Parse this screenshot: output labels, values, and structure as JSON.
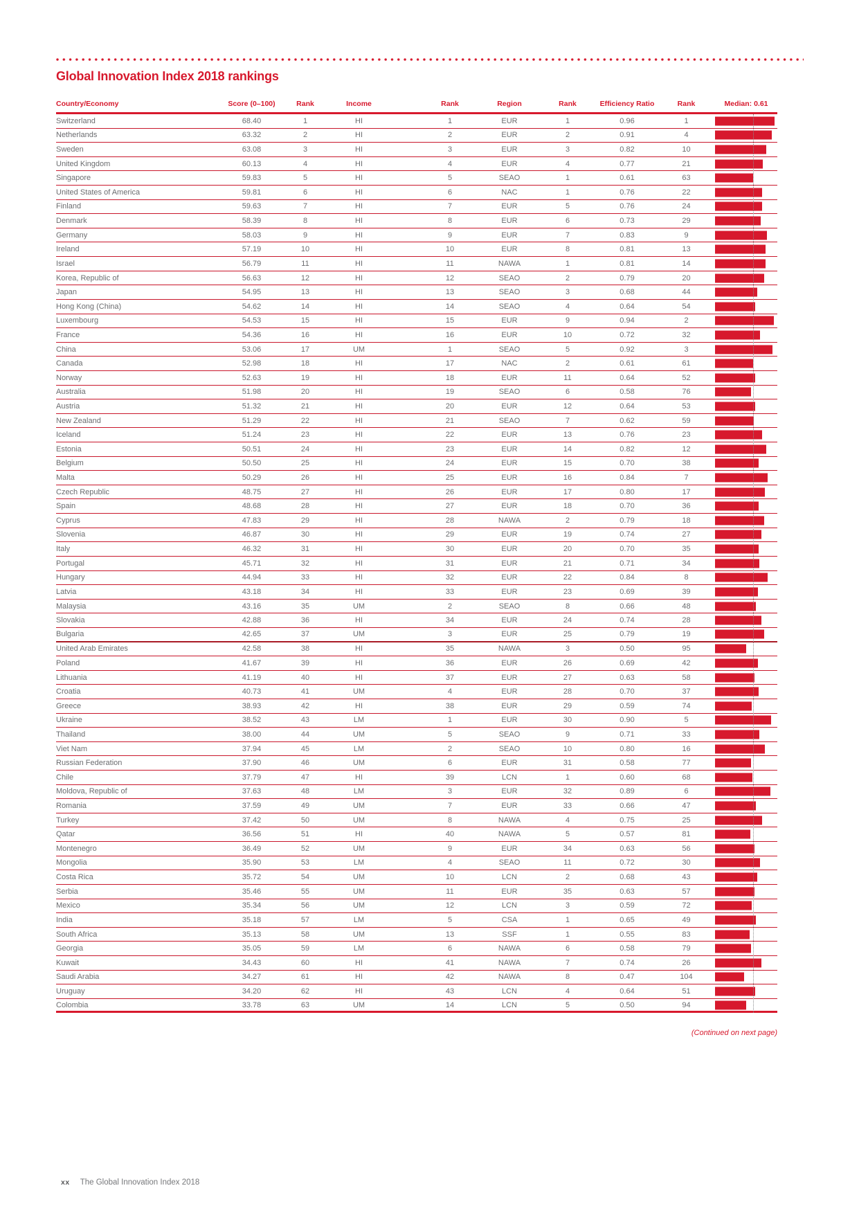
{
  "page": {
    "title": "Global Innovation Index 2018 rankings",
    "continued_note": "(Continued on next page)",
    "footer": {
      "page_number": "xx",
      "text": "The Global Innovation Index 2018"
    }
  },
  "colors": {
    "accent_red": "#D7192D",
    "row_line_red": "#C9162B",
    "body_text_gray": "#6B6C6F",
    "median_line_gray": "#8A8C8E"
  },
  "table": {
    "headers": {
      "country": "Country/Economy",
      "score": "Score (0–100)",
      "score_rank": "Rank",
      "income": "Income",
      "income_rank": "Rank",
      "region": "Region",
      "region_rank": "Rank",
      "efficiency": "Efficiency Ratio",
      "efficiency_rank": "Rank",
      "median": "Median: 0.61"
    },
    "median_value": 0.61,
    "half_divider_after_rank": 37,
    "rows": [
      {
        "country": "Switzerland",
        "score": "68.40",
        "score_rank": "1",
        "income": "HI",
        "income_rank": "1",
        "region": "EUR",
        "region_rank": "1",
        "efficiency_ratio": "0.96",
        "efficiency_rank": "1"
      },
      {
        "country": "Netherlands",
        "score": "63.32",
        "score_rank": "2",
        "income": "HI",
        "income_rank": "2",
        "region": "EUR",
        "region_rank": "2",
        "efficiency_ratio": "0.91",
        "efficiency_rank": "4"
      },
      {
        "country": "Sweden",
        "score": "63.08",
        "score_rank": "3",
        "income": "HI",
        "income_rank": "3",
        "region": "EUR",
        "region_rank": "3",
        "efficiency_ratio": "0.82",
        "efficiency_rank": "10"
      },
      {
        "country": "United Kingdom",
        "score": "60.13",
        "score_rank": "4",
        "income": "HI",
        "income_rank": "4",
        "region": "EUR",
        "region_rank": "4",
        "efficiency_ratio": "0.77",
        "efficiency_rank": "21"
      },
      {
        "country": "Singapore",
        "score": "59.83",
        "score_rank": "5",
        "income": "HI",
        "income_rank": "5",
        "region": "SEAO",
        "region_rank": "1",
        "efficiency_ratio": "0.61",
        "efficiency_rank": "63"
      },
      {
        "country": "United States of America",
        "score": "59.81",
        "score_rank": "6",
        "income": "HI",
        "income_rank": "6",
        "region": "NAC",
        "region_rank": "1",
        "efficiency_ratio": "0.76",
        "efficiency_rank": "22"
      },
      {
        "country": "Finland",
        "score": "59.63",
        "score_rank": "7",
        "income": "HI",
        "income_rank": "7",
        "region": "EUR",
        "region_rank": "5",
        "efficiency_ratio": "0.76",
        "efficiency_rank": "24"
      },
      {
        "country": "Denmark",
        "score": "58.39",
        "score_rank": "8",
        "income": "HI",
        "income_rank": "8",
        "region": "EUR",
        "region_rank": "6",
        "efficiency_ratio": "0.73",
        "efficiency_rank": "29"
      },
      {
        "country": "Germany",
        "score": "58.03",
        "score_rank": "9",
        "income": "HI",
        "income_rank": "9",
        "region": "EUR",
        "region_rank": "7",
        "efficiency_ratio": "0.83",
        "efficiency_rank": "9"
      },
      {
        "country": "Ireland",
        "score": "57.19",
        "score_rank": "10",
        "income": "HI",
        "income_rank": "10",
        "region": "EUR",
        "region_rank": "8",
        "efficiency_ratio": "0.81",
        "efficiency_rank": "13"
      },
      {
        "country": "Israel",
        "score": "56.79",
        "score_rank": "11",
        "income": "HI",
        "income_rank": "11",
        "region": "NAWA",
        "region_rank": "1",
        "efficiency_ratio": "0.81",
        "efficiency_rank": "14"
      },
      {
        "country": "Korea, Republic of",
        "score": "56.63",
        "score_rank": "12",
        "income": "HI",
        "income_rank": "12",
        "region": "SEAO",
        "region_rank": "2",
        "efficiency_ratio": "0.79",
        "efficiency_rank": "20"
      },
      {
        "country": "Japan",
        "score": "54.95",
        "score_rank": "13",
        "income": "HI",
        "income_rank": "13",
        "region": "SEAO",
        "region_rank": "3",
        "efficiency_ratio": "0.68",
        "efficiency_rank": "44"
      },
      {
        "country": "Hong Kong (China)",
        "score": "54.62",
        "score_rank": "14",
        "income": "HI",
        "income_rank": "14",
        "region": "SEAO",
        "region_rank": "4",
        "efficiency_ratio": "0.64",
        "efficiency_rank": "54"
      },
      {
        "country": "Luxembourg",
        "score": "54.53",
        "score_rank": "15",
        "income": "HI",
        "income_rank": "15",
        "region": "EUR",
        "region_rank": "9",
        "efficiency_ratio": "0.94",
        "efficiency_rank": "2"
      },
      {
        "country": "France",
        "score": "54.36",
        "score_rank": "16",
        "income": "HI",
        "income_rank": "16",
        "region": "EUR",
        "region_rank": "10",
        "efficiency_ratio": "0.72",
        "efficiency_rank": "32"
      },
      {
        "country": "China",
        "score": "53.06",
        "score_rank": "17",
        "income": "UM",
        "income_rank": "1",
        "region": "SEAO",
        "region_rank": "5",
        "efficiency_ratio": "0.92",
        "efficiency_rank": "3"
      },
      {
        "country": "Canada",
        "score": "52.98",
        "score_rank": "18",
        "income": "HI",
        "income_rank": "17",
        "region": "NAC",
        "region_rank": "2",
        "efficiency_ratio": "0.61",
        "efficiency_rank": "61"
      },
      {
        "country": "Norway",
        "score": "52.63",
        "score_rank": "19",
        "income": "HI",
        "income_rank": "18",
        "region": "EUR",
        "region_rank": "11",
        "efficiency_ratio": "0.64",
        "efficiency_rank": "52"
      },
      {
        "country": "Australia",
        "score": "51.98",
        "score_rank": "20",
        "income": "HI",
        "income_rank": "19",
        "region": "SEAO",
        "region_rank": "6",
        "efficiency_ratio": "0.58",
        "efficiency_rank": "76"
      },
      {
        "country": "Austria",
        "score": "51.32",
        "score_rank": "21",
        "income": "HI",
        "income_rank": "20",
        "region": "EUR",
        "region_rank": "12",
        "efficiency_ratio": "0.64",
        "efficiency_rank": "53"
      },
      {
        "country": "New Zealand",
        "score": "51.29",
        "score_rank": "22",
        "income": "HI",
        "income_rank": "21",
        "region": "SEAO",
        "region_rank": "7",
        "efficiency_ratio": "0.62",
        "efficiency_rank": "59"
      },
      {
        "country": "Iceland",
        "score": "51.24",
        "score_rank": "23",
        "income": "HI",
        "income_rank": "22",
        "region": "EUR",
        "region_rank": "13",
        "efficiency_ratio": "0.76",
        "efficiency_rank": "23"
      },
      {
        "country": "Estonia",
        "score": "50.51",
        "score_rank": "24",
        "income": "HI",
        "income_rank": "23",
        "region": "EUR",
        "region_rank": "14",
        "efficiency_ratio": "0.82",
        "efficiency_rank": "12"
      },
      {
        "country": "Belgium",
        "score": "50.50",
        "score_rank": "25",
        "income": "HI",
        "income_rank": "24",
        "region": "EUR",
        "region_rank": "15",
        "efficiency_ratio": "0.70",
        "efficiency_rank": "38"
      },
      {
        "country": "Malta",
        "score": "50.29",
        "score_rank": "26",
        "income": "HI",
        "income_rank": "25",
        "region": "EUR",
        "region_rank": "16",
        "efficiency_ratio": "0.84",
        "efficiency_rank": "7"
      },
      {
        "country": "Czech Republic",
        "score": "48.75",
        "score_rank": "27",
        "income": "HI",
        "income_rank": "26",
        "region": "EUR",
        "region_rank": "17",
        "efficiency_ratio": "0.80",
        "efficiency_rank": "17"
      },
      {
        "country": "Spain",
        "score": "48.68",
        "score_rank": "28",
        "income": "HI",
        "income_rank": "27",
        "region": "EUR",
        "region_rank": "18",
        "efficiency_ratio": "0.70",
        "efficiency_rank": "36"
      },
      {
        "country": "Cyprus",
        "score": "47.83",
        "score_rank": "29",
        "income": "HI",
        "income_rank": "28",
        "region": "NAWA",
        "region_rank": "2",
        "efficiency_ratio": "0.79",
        "efficiency_rank": "18"
      },
      {
        "country": "Slovenia",
        "score": "46.87",
        "score_rank": "30",
        "income": "HI",
        "income_rank": "29",
        "region": "EUR",
        "region_rank": "19",
        "efficiency_ratio": "0.74",
        "efficiency_rank": "27"
      },
      {
        "country": "Italy",
        "score": "46.32",
        "score_rank": "31",
        "income": "HI",
        "income_rank": "30",
        "region": "EUR",
        "region_rank": "20",
        "efficiency_ratio": "0.70",
        "efficiency_rank": "35"
      },
      {
        "country": "Portugal",
        "score": "45.71",
        "score_rank": "32",
        "income": "HI",
        "income_rank": "31",
        "region": "EUR",
        "region_rank": "21",
        "efficiency_ratio": "0.71",
        "efficiency_rank": "34"
      },
      {
        "country": "Hungary",
        "score": "44.94",
        "score_rank": "33",
        "income": "HI",
        "income_rank": "32",
        "region": "EUR",
        "region_rank": "22",
        "efficiency_ratio": "0.84",
        "efficiency_rank": "8"
      },
      {
        "country": "Latvia",
        "score": "43.18",
        "score_rank": "34",
        "income": "HI",
        "income_rank": "33",
        "region": "EUR",
        "region_rank": "23",
        "efficiency_ratio": "0.69",
        "efficiency_rank": "39"
      },
      {
        "country": "Malaysia",
        "score": "43.16",
        "score_rank": "35",
        "income": "UM",
        "income_rank": "2",
        "region": "SEAO",
        "region_rank": "8",
        "efficiency_ratio": "0.66",
        "efficiency_rank": "48"
      },
      {
        "country": "Slovakia",
        "score": "42.88",
        "score_rank": "36",
        "income": "HI",
        "income_rank": "34",
        "region": "EUR",
        "region_rank": "24",
        "efficiency_ratio": "0.74",
        "efficiency_rank": "28"
      },
      {
        "country": "Bulgaria",
        "score": "42.65",
        "score_rank": "37",
        "income": "UM",
        "income_rank": "3",
        "region": "EUR",
        "region_rank": "25",
        "efficiency_ratio": "0.79",
        "efficiency_rank": "19"
      },
      {
        "country": "United Arab Emirates",
        "score": "42.58",
        "score_rank": "38",
        "income": "HI",
        "income_rank": "35",
        "region": "NAWA",
        "region_rank": "3",
        "efficiency_ratio": "0.50",
        "efficiency_rank": "95"
      },
      {
        "country": "Poland",
        "score": "41.67",
        "score_rank": "39",
        "income": "HI",
        "income_rank": "36",
        "region": "EUR",
        "region_rank": "26",
        "efficiency_ratio": "0.69",
        "efficiency_rank": "42"
      },
      {
        "country": "Lithuania",
        "score": "41.19",
        "score_rank": "40",
        "income": "HI",
        "income_rank": "37",
        "region": "EUR",
        "region_rank": "27",
        "efficiency_ratio": "0.63",
        "efficiency_rank": "58"
      },
      {
        "country": "Croatia",
        "score": "40.73",
        "score_rank": "41",
        "income": "UM",
        "income_rank": "4",
        "region": "EUR",
        "region_rank": "28",
        "efficiency_ratio": "0.70",
        "efficiency_rank": "37"
      },
      {
        "country": "Greece",
        "score": "38.93",
        "score_rank": "42",
        "income": "HI",
        "income_rank": "38",
        "region": "EUR",
        "region_rank": "29",
        "efficiency_ratio": "0.59",
        "efficiency_rank": "74"
      },
      {
        "country": "Ukraine",
        "score": "38.52",
        "score_rank": "43",
        "income": "LM",
        "income_rank": "1",
        "region": "EUR",
        "region_rank": "30",
        "efficiency_ratio": "0.90",
        "efficiency_rank": "5"
      },
      {
        "country": "Thailand",
        "score": "38.00",
        "score_rank": "44",
        "income": "UM",
        "income_rank": "5",
        "region": "SEAO",
        "region_rank": "9",
        "efficiency_ratio": "0.71",
        "efficiency_rank": "33"
      },
      {
        "country": "Viet Nam",
        "score": "37.94",
        "score_rank": "45",
        "income": "LM",
        "income_rank": "2",
        "region": "SEAO",
        "region_rank": "10",
        "efficiency_ratio": "0.80",
        "efficiency_rank": "16"
      },
      {
        "country": "Russian Federation",
        "score": "37.90",
        "score_rank": "46",
        "income": "UM",
        "income_rank": "6",
        "region": "EUR",
        "region_rank": "31",
        "efficiency_ratio": "0.58",
        "efficiency_rank": "77"
      },
      {
        "country": "Chile",
        "score": "37.79",
        "score_rank": "47",
        "income": "HI",
        "income_rank": "39",
        "region": "LCN",
        "region_rank": "1",
        "efficiency_ratio": "0.60",
        "efficiency_rank": "68"
      },
      {
        "country": "Moldova, Republic of",
        "score": "37.63",
        "score_rank": "48",
        "income": "LM",
        "income_rank": "3",
        "region": "EUR",
        "region_rank": "32",
        "efficiency_ratio": "0.89",
        "efficiency_rank": "6"
      },
      {
        "country": "Romania",
        "score": "37.59",
        "score_rank": "49",
        "income": "UM",
        "income_rank": "7",
        "region": "EUR",
        "region_rank": "33",
        "efficiency_ratio": "0.66",
        "efficiency_rank": "47"
      },
      {
        "country": "Turkey",
        "score": "37.42",
        "score_rank": "50",
        "income": "UM",
        "income_rank": "8",
        "region": "NAWA",
        "region_rank": "4",
        "efficiency_ratio": "0.75",
        "efficiency_rank": "25"
      },
      {
        "country": "Qatar",
        "score": "36.56",
        "score_rank": "51",
        "income": "HI",
        "income_rank": "40",
        "region": "NAWA",
        "region_rank": "5",
        "efficiency_ratio": "0.57",
        "efficiency_rank": "81"
      },
      {
        "country": "Montenegro",
        "score": "36.49",
        "score_rank": "52",
        "income": "UM",
        "income_rank": "9",
        "region": "EUR",
        "region_rank": "34",
        "efficiency_ratio": "0.63",
        "efficiency_rank": "56"
      },
      {
        "country": "Mongolia",
        "score": "35.90",
        "score_rank": "53",
        "income": "LM",
        "income_rank": "4",
        "region": "SEAO",
        "region_rank": "11",
        "efficiency_ratio": "0.72",
        "efficiency_rank": "30"
      },
      {
        "country": "Costa Rica",
        "score": "35.72",
        "score_rank": "54",
        "income": "UM",
        "income_rank": "10",
        "region": "LCN",
        "region_rank": "2",
        "efficiency_ratio": "0.68",
        "efficiency_rank": "43"
      },
      {
        "country": "Serbia",
        "score": "35.46",
        "score_rank": "55",
        "income": "UM",
        "income_rank": "11",
        "region": "EUR",
        "region_rank": "35",
        "efficiency_ratio": "0.63",
        "efficiency_rank": "57"
      },
      {
        "country": "Mexico",
        "score": "35.34",
        "score_rank": "56",
        "income": "UM",
        "income_rank": "12",
        "region": "LCN",
        "region_rank": "3",
        "efficiency_ratio": "0.59",
        "efficiency_rank": "72"
      },
      {
        "country": "India",
        "score": "35.18",
        "score_rank": "57",
        "income": "LM",
        "income_rank": "5",
        "region": "CSA",
        "region_rank": "1",
        "efficiency_ratio": "0.65",
        "efficiency_rank": "49"
      },
      {
        "country": "South Africa",
        "score": "35.13",
        "score_rank": "58",
        "income": "UM",
        "income_rank": "13",
        "region": "SSF",
        "region_rank": "1",
        "efficiency_ratio": "0.55",
        "efficiency_rank": "83"
      },
      {
        "country": "Georgia",
        "score": "35.05",
        "score_rank": "59",
        "income": "LM",
        "income_rank": "6",
        "region": "NAWA",
        "region_rank": "6",
        "efficiency_ratio": "0.58",
        "efficiency_rank": "79"
      },
      {
        "country": "Kuwait",
        "score": "34.43",
        "score_rank": "60",
        "income": "HI",
        "income_rank": "41",
        "region": "NAWA",
        "region_rank": "7",
        "efficiency_ratio": "0.74",
        "efficiency_rank": "26"
      },
      {
        "country": "Saudi Arabia",
        "score": "34.27",
        "score_rank": "61",
        "income": "HI",
        "income_rank": "42",
        "region": "NAWA",
        "region_rank": "8",
        "efficiency_ratio": "0.47",
        "efficiency_rank": "104"
      },
      {
        "country": "Uruguay",
        "score": "34.20",
        "score_rank": "62",
        "income": "HI",
        "income_rank": "43",
        "region": "LCN",
        "region_rank": "4",
        "efficiency_ratio": "0.64",
        "efficiency_rank": "51"
      },
      {
        "country": "Colombia",
        "score": "33.78",
        "score_rank": "63",
        "income": "UM",
        "income_rank": "14",
        "region": "LCN",
        "region_rank": "5",
        "efficiency_ratio": "0.50",
        "efficiency_rank": "94"
      }
    ]
  }
}
